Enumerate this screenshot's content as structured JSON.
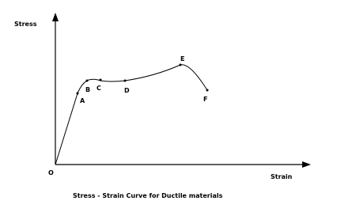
{
  "y_axis_label": "Stress",
  "x_axis_label": "Strain",
  "origin_label": "O",
  "points": [
    {
      "label": "A"
    },
    {
      "label": "B"
    },
    {
      "label": "C"
    },
    {
      "label": "D"
    },
    {
      "label": "E"
    },
    {
      "label": "F"
    }
  ],
  "caption": "Stress - Strain Curve for Ductile materials"
}
